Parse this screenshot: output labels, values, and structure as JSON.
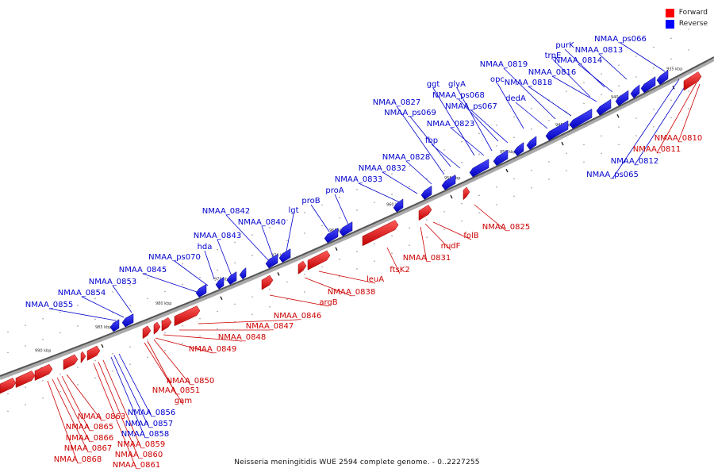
{
  "legend": {
    "forward": {
      "label": "Forward",
      "color": "#ff0000"
    },
    "reverse": {
      "label": "Reverse",
      "color": "#0000ff"
    }
  },
  "caption": "Neisseria meningitidis WUE 2594 complete genome. - 0..2227255",
  "axis_ticks": [
    "935 kbp",
    "940 kbp",
    "945 kbp",
    "950 kbp",
    "955 kbp",
    "960 kbp",
    "965 kbp",
    "970 kbp",
    "975 kbp",
    "980 kbp",
    "985 kbp",
    "990 kbp"
  ],
  "reverse_genes": [
    "NMAA_ps066",
    "purK",
    "NMAA_0813",
    "trpE",
    "NMAA_0814",
    "NMAA_0819",
    "NMAA_0816",
    "opc",
    "NMAA_0818",
    "ggt",
    "glyA",
    "NMAA_ps068",
    "dedA",
    "NMAA_0827",
    "NMAA_ps067",
    "NMAA_ps069",
    "NMAA_0823",
    "fbp",
    "NMAA_0828",
    "NMAA_0832",
    "NMAA_0833",
    "proA",
    "proB",
    "lgt",
    "NMAA_0842",
    "NMAA_0840",
    "NMAA_0843",
    "hda",
    "NMAA_ps070",
    "NMAA_0845",
    "NMAA_0853",
    "NMAA_0854",
    "NMAA_0855",
    "NMAA_0856",
    "NMAA_0857",
    "NMAA_0858",
    "NMAA_0812",
    "NMAA_ps065"
  ],
  "forward_genes": [
    "NMAA_0810",
    "NMAA_0811",
    "NMAA_0825",
    "folB",
    "nudF",
    "NMAA_0831",
    "ftsK2",
    "leuA",
    "NMAA_0838",
    "argB",
    "NMAA_0846",
    "NMAA_0847",
    "NMAA_0848",
    "NMAA_0849",
    "NMAA_0850",
    "NMAA_0851",
    "gam",
    "NMAA_0863",
    "NMAA_0865",
    "NMAA_0866",
    "NMAA_0867",
    "NMAA_0868",
    "NMAA_0859",
    "NMAA_0860",
    "NMAA_0861"
  ]
}
